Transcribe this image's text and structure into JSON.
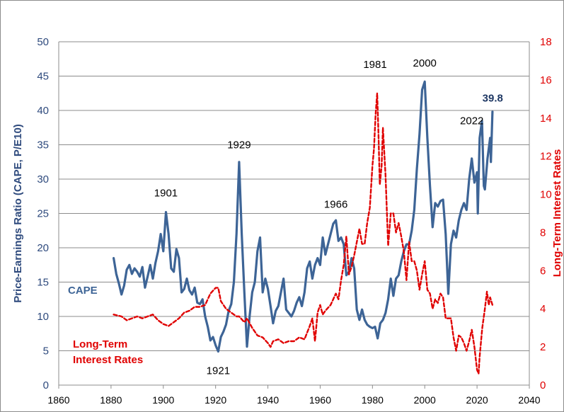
{
  "chart_data": {
    "type": "line",
    "x_axis": {
      "min": 1860,
      "max": 2040,
      "ticks": [
        1860,
        1880,
        1900,
        1920,
        1940,
        1960,
        1980,
        2000,
        2020,
        2040
      ]
    },
    "y_axis_left": {
      "label": "Price-Earnings Ratio (CAPE, P/E10)",
      "min": 0,
      "max": 50,
      "ticks": [
        0,
        5,
        10,
        15,
        20,
        25,
        30,
        35,
        40,
        45,
        50
      ]
    },
    "y_axis_right": {
      "label": "Long-Term Interest Rates",
      "min": 0,
      "max": 18,
      "ticks": [
        0,
        2,
        4,
        6,
        8,
        10,
        12,
        14,
        16,
        18
      ]
    },
    "grid": true,
    "series": [
      {
        "name": "CAPE",
        "axis": "left",
        "color": "#3d6496",
        "style": "solid",
        "points": [
          [
            1881,
            18.5
          ],
          [
            1882,
            16.2
          ],
          [
            1883,
            14.8
          ],
          [
            1884,
            13.2
          ],
          [
            1885,
            14.5
          ],
          [
            1886,
            16.8
          ],
          [
            1887,
            17.5
          ],
          [
            1888,
            16.2
          ],
          [
            1889,
            17.0
          ],
          [
            1890,
            16.5
          ],
          [
            1891,
            15.8
          ],
          [
            1892,
            17.2
          ],
          [
            1893,
            14.2
          ],
          [
            1894,
            15.8
          ],
          [
            1895,
            17.5
          ],
          [
            1896,
            15.5
          ],
          [
            1897,
            17.8
          ],
          [
            1898,
            19.5
          ],
          [
            1899,
            22.0
          ],
          [
            1900,
            19.5
          ],
          [
            1901,
            25.2
          ],
          [
            1902,
            22.0
          ],
          [
            1903,
            17.0
          ],
          [
            1904,
            16.5
          ],
          [
            1905,
            19.8
          ],
          [
            1906,
            18.5
          ],
          [
            1907,
            13.5
          ],
          [
            1908,
            14.0
          ],
          [
            1909,
            15.5
          ],
          [
            1910,
            13.8
          ],
          [
            1911,
            13.2
          ],
          [
            1912,
            14.2
          ],
          [
            1913,
            12.0
          ],
          [
            1914,
            11.8
          ],
          [
            1915,
            12.5
          ],
          [
            1916,
            10.0
          ],
          [
            1917,
            8.5
          ],
          [
            1918,
            6.5
          ],
          [
            1919,
            7.0
          ],
          [
            1920,
            5.8
          ],
          [
            1921,
            4.9
          ],
          [
            1922,
            7.0
          ],
          [
            1923,
            7.8
          ],
          [
            1924,
            8.8
          ],
          [
            1925,
            10.8
          ],
          [
            1926,
            11.8
          ],
          [
            1927,
            15.0
          ],
          [
            1928,
            22.0
          ],
          [
            1929,
            32.5
          ],
          [
            1930,
            22.0
          ],
          [
            1931,
            13.5
          ],
          [
            1932,
            5.6
          ],
          [
            1933,
            10.0
          ],
          [
            1934,
            13.5
          ],
          [
            1935,
            15.0
          ],
          [
            1936,
            19.5
          ],
          [
            1937,
            21.5
          ],
          [
            1938,
            13.5
          ],
          [
            1939,
            15.5
          ],
          [
            1940,
            14.0
          ],
          [
            1941,
            11.5
          ],
          [
            1942,
            9.0
          ],
          [
            1943,
            10.8
          ],
          [
            1944,
            11.5
          ],
          [
            1945,
            13.5
          ],
          [
            1946,
            15.5
          ],
          [
            1947,
            11.0
          ],
          [
            1948,
            10.5
          ],
          [
            1949,
            10.0
          ],
          [
            1950,
            10.8
          ],
          [
            1951,
            12.0
          ],
          [
            1952,
            12.8
          ],
          [
            1953,
            11.5
          ],
          [
            1954,
            13.5
          ],
          [
            1955,
            17.0
          ],
          [
            1956,
            18.0
          ],
          [
            1957,
            15.5
          ],
          [
            1958,
            17.5
          ],
          [
            1959,
            18.5
          ],
          [
            1960,
            17.5
          ],
          [
            1961,
            21.5
          ],
          [
            1962,
            19.0
          ],
          [
            1963,
            20.5
          ],
          [
            1964,
            22.0
          ],
          [
            1965,
            23.5
          ],
          [
            1966,
            24.0
          ],
          [
            1967,
            21.0
          ],
          [
            1968,
            21.5
          ],
          [
            1969,
            20.5
          ],
          [
            1970,
            16.0
          ],
          [
            1971,
            16.5
          ],
          [
            1972,
            18.5
          ],
          [
            1973,
            17.0
          ],
          [
            1974,
            11.0
          ],
          [
            1975,
            9.5
          ],
          [
            1976,
            11.0
          ],
          [
            1977,
            9.5
          ],
          [
            1978,
            8.8
          ],
          [
            1979,
            8.5
          ],
          [
            1980,
            8.3
          ],
          [
            1981,
            8.5
          ],
          [
            1982,
            6.8
          ],
          [
            1983,
            9.0
          ],
          [
            1984,
            9.5
          ],
          [
            1985,
            10.5
          ],
          [
            1986,
            12.5
          ],
          [
            1987,
            15.5
          ],
          [
            1988,
            13.0
          ],
          [
            1989,
            15.5
          ],
          [
            1990,
            16.0
          ],
          [
            1991,
            18.0
          ],
          [
            1992,
            19.5
          ],
          [
            1993,
            20.5
          ],
          [
            1994,
            20.5
          ],
          [
            1995,
            22.5
          ],
          [
            1996,
            25.5
          ],
          [
            1997,
            31.5
          ],
          [
            1998,
            36.5
          ],
          [
            1999,
            43.0
          ],
          [
            2000,
            44.2
          ],
          [
            2001,
            36.0
          ],
          [
            2002,
            29.0
          ],
          [
            2003,
            23.0
          ],
          [
            2004,
            26.5
          ],
          [
            2005,
            26.0
          ],
          [
            2006,
            26.8
          ],
          [
            2007,
            27.0
          ],
          [
            2008,
            22.0
          ],
          [
            2009,
            13.3
          ],
          [
            2010,
            20.5
          ],
          [
            2011,
            22.5
          ],
          [
            2012,
            21.5
          ],
          [
            2013,
            24.0
          ],
          [
            2014,
            25.5
          ],
          [
            2015,
            26.5
          ],
          [
            2016,
            25.5
          ],
          [
            2017,
            30.0
          ],
          [
            2018,
            33.0
          ],
          [
            2019,
            29.5
          ],
          [
            2020,
            31.0
          ],
          [
            2020.3,
            25.0
          ],
          [
            2021,
            36.0
          ],
          [
            2021.9,
            38.5
          ],
          [
            2022.6,
            29.0
          ],
          [
            2023,
            28.5
          ],
          [
            2024,
            33.0
          ],
          [
            2025,
            36.0
          ],
          [
            2025.3,
            32.5
          ],
          [
            2025.9,
            39.8
          ]
        ]
      },
      {
        "name": "Long-Term Interest Rates",
        "axis": "right",
        "color": "#e00000",
        "style": "dashed",
        "points": [
          [
            1881,
            3.7
          ],
          [
            1884,
            3.6
          ],
          [
            1886,
            3.4
          ],
          [
            1888,
            3.5
          ],
          [
            1890,
            3.6
          ],
          [
            1892,
            3.5
          ],
          [
            1894,
            3.6
          ],
          [
            1896,
            3.7
          ],
          [
            1898,
            3.4
          ],
          [
            1900,
            3.2
          ],
          [
            1902,
            3.1
          ],
          [
            1904,
            3.3
          ],
          [
            1906,
            3.5
          ],
          [
            1908,
            3.8
          ],
          [
            1910,
            3.9
          ],
          [
            1912,
            4.1
          ],
          [
            1914,
            4.1
          ],
          [
            1916,
            4.2
          ],
          [
            1918,
            4.8
          ],
          [
            1920,
            5.1
          ],
          [
            1921,
            5.1
          ],
          [
            1922,
            4.4
          ],
          [
            1924,
            4.0
          ],
          [
            1926,
            3.8
          ],
          [
            1928,
            3.6
          ],
          [
            1929,
            3.6
          ],
          [
            1931,
            3.3
          ],
          [
            1932,
            3.5
          ],
          [
            1934,
            3.0
          ],
          [
            1936,
            2.6
          ],
          [
            1938,
            2.5
          ],
          [
            1940,
            2.2
          ],
          [
            1941,
            2.0
          ],
          [
            1942,
            2.3
          ],
          [
            1944,
            2.4
          ],
          [
            1946,
            2.2
          ],
          [
            1948,
            2.3
          ],
          [
            1950,
            2.3
          ],
          [
            1952,
            2.5
          ],
          [
            1954,
            2.4
          ],
          [
            1956,
            3.1
          ],
          [
            1957,
            3.5
          ],
          [
            1958,
            2.3
          ],
          [
            1959,
            3.8
          ],
          [
            1960,
            4.2
          ],
          [
            1961,
            3.7
          ],
          [
            1962,
            3.9
          ],
          [
            1964,
            4.2
          ],
          [
            1966,
            4.8
          ],
          [
            1967,
            4.5
          ],
          [
            1968,
            5.5
          ],
          [
            1969,
            6.3
          ],
          [
            1970,
            7.8
          ],
          [
            1971,
            5.8
          ],
          [
            1972,
            6.2
          ],
          [
            1973,
            6.8
          ],
          [
            1974,
            7.5
          ],
          [
            1975,
            8.2
          ],
          [
            1976,
            7.4
          ],
          [
            1977,
            7.4
          ],
          [
            1978,
            8.5
          ],
          [
            1979,
            9.3
          ],
          [
            1980,
            11.5
          ],
          [
            1980.6,
            12.4
          ],
          [
            1981.2,
            14.2
          ],
          [
            1981.8,
            15.3
          ],
          [
            1982.3,
            13.2
          ],
          [
            1982.8,
            10.5
          ],
          [
            1983.5,
            11.5
          ],
          [
            1984,
            13.5
          ],
          [
            1985,
            11.0
          ],
          [
            1986,
            7.3
          ],
          [
            1987,
            9.0
          ],
          [
            1988,
            9.0
          ],
          [
            1989,
            8.0
          ],
          [
            1990,
            8.5
          ],
          [
            1991,
            7.8
          ],
          [
            1992,
            7.0
          ],
          [
            1993,
            5.5
          ],
          [
            1994,
            7.5
          ],
          [
            1995,
            6.5
          ],
          [
            1996,
            6.5
          ],
          [
            1997,
            6.0
          ],
          [
            1998,
            5.0
          ],
          [
            1999,
            5.8
          ],
          [
            2000,
            6.5
          ],
          [
            2001,
            5.0
          ],
          [
            2002,
            4.8
          ],
          [
            2003,
            4.0
          ],
          [
            2004,
            4.5
          ],
          [
            2005,
            4.3
          ],
          [
            2006,
            4.8
          ],
          [
            2007,
            4.6
          ],
          [
            2008,
            3.5
          ],
          [
            2009,
            3.5
          ],
          [
            2010,
            3.5
          ],
          [
            2011,
            2.5
          ],
          [
            2012,
            1.8
          ],
          [
            2013,
            2.6
          ],
          [
            2014,
            2.5
          ],
          [
            2015,
            2.2
          ],
          [
            2016,
            1.8
          ],
          [
            2017,
            2.3
          ],
          [
            2018,
            2.9
          ],
          [
            2019,
            2.0
          ],
          [
            2020,
            0.8
          ],
          [
            2020.6,
            0.6
          ],
          [
            2021,
            1.5
          ],
          [
            2022,
            3.0
          ],
          [
            2023,
            4.0
          ],
          [
            2023.8,
            4.9
          ],
          [
            2024.5,
            4.2
          ],
          [
            2025,
            4.6
          ],
          [
            2025.9,
            4.2
          ]
        ]
      }
    ],
    "annotations": [
      {
        "text": "1901",
        "x": 1901,
        "y": 27.5,
        "axis": "left"
      },
      {
        "text": "1921",
        "x": 1921,
        "y": 1.6,
        "axis": "left"
      },
      {
        "text": "1929",
        "x": 1929,
        "y": 34.5,
        "axis": "left"
      },
      {
        "text": "1966",
        "x": 1966,
        "y": 25.8,
        "axis": "left"
      },
      {
        "text": "1981",
        "x": 1981,
        "y": 46.2,
        "axis": "left"
      },
      {
        "text": "2000",
        "x": 2000,
        "y": 46.4,
        "axis": "left"
      },
      {
        "text": "2022",
        "x": 2018,
        "y": 38.0,
        "axis": "left"
      },
      {
        "text": "39.8",
        "x": 2026,
        "y": 41.3,
        "axis": "left",
        "emphasis": true
      }
    ],
    "legend": {
      "cape_label": "CAPE",
      "rates_label_line1": "Long-Term",
      "rates_label_line2": "Interest Rates"
    }
  }
}
